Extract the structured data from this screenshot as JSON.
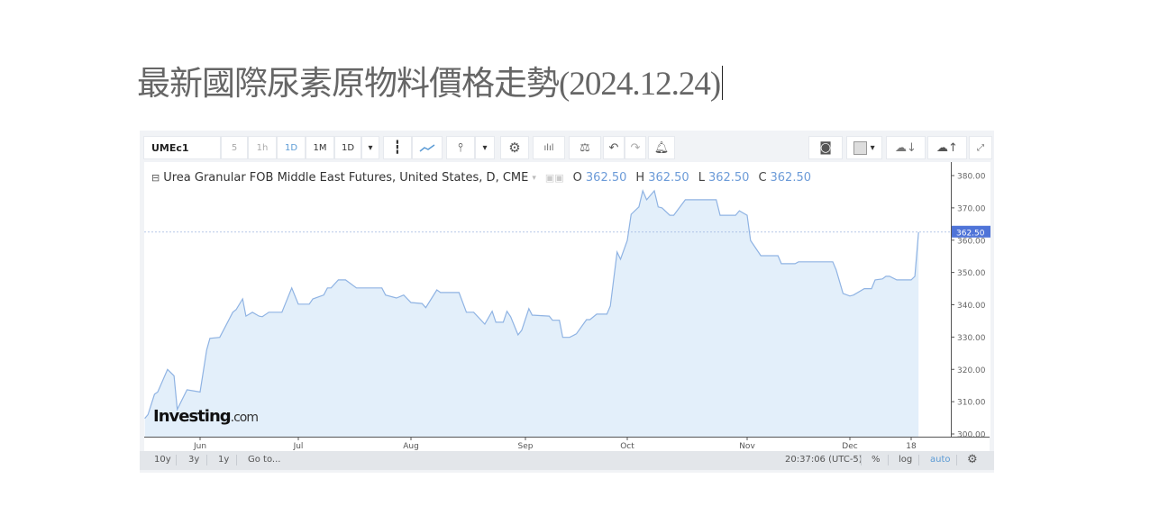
{
  "page": {
    "title": "最新國際尿素原物料價格走勢(2024.12.24)"
  },
  "toolbar": {
    "symbol": "UMEc1",
    "intervals": [
      "5",
      "1h",
      "1D",
      "1M",
      "1D"
    ],
    "icons": [
      "candlestick-icon",
      "line-chart-icon",
      "bar-type-icon",
      "settings-icon",
      "indicators-icon",
      "compare-icon",
      "undo-icon",
      "redo-icon",
      "alert-icon",
      "camera-icon",
      "color-swatch-icon",
      "cloud-download-icon",
      "cloud-upload-icon",
      "fullscreen-icon"
    ]
  },
  "legend": {
    "name": "Urea Granular FOB Middle East Futures, United States, D, CME",
    "o_label": "O",
    "o": "362.50",
    "h_label": "H",
    "h": "362.50",
    "l_label": "L",
    "l": "362.50",
    "c_label": "C",
    "c": "362.50"
  },
  "watermark": {
    "brand": "Investing",
    "suffix": ".com"
  },
  "bottom_bar": {
    "ranges": [
      "10y",
      "3y",
      "1y"
    ],
    "goto": "Go to...",
    "time": "20:37:06 (UTC-5)",
    "percent": "%",
    "log": "log",
    "auto": "auto"
  },
  "colors": {
    "line": "#8fb3e3",
    "fill": "#e3effa",
    "last_price_bg": "#4f74d8",
    "accent": "#5b9bd5"
  },
  "chart_data": {
    "type": "area",
    "ylim": [
      300,
      380
    ],
    "y_ticks": [
      "380.00",
      "370.00",
      "360.00",
      "350.00",
      "340.00",
      "330.00",
      "320.00",
      "310.00",
      "300.00"
    ],
    "x_ticks": [
      "Jun",
      "Jul",
      "Aug",
      "Sep",
      "Oct",
      "Nov",
      "Dec",
      "18"
    ],
    "last_price": "362.50",
    "grid": false,
    "points": [
      [
        "2024-05-15",
        304.8
      ],
      [
        "2024-05-16",
        306
      ],
      [
        "2024-05-18",
        312.3
      ],
      [
        "2024-05-19",
        313
      ],
      [
        "2024-05-22",
        320
      ],
      [
        "2024-05-24",
        318
      ],
      [
        "2024-05-25",
        307.6
      ],
      [
        "2024-05-28",
        313.7
      ],
      [
        "2024-06-01",
        313
      ],
      [
        "2024-06-03",
        326
      ],
      [
        "2024-06-04",
        329.6
      ],
      [
        "2024-06-07",
        329.9
      ],
      [
        "2024-06-11",
        337.7
      ],
      [
        "2024-06-12",
        338.5
      ],
      [
        "2024-06-14",
        341.8
      ],
      [
        "2024-06-15",
        336.5
      ],
      [
        "2024-06-17",
        337.7
      ],
      [
        "2024-06-19",
        336.5
      ],
      [
        "2024-06-20",
        336.3
      ],
      [
        "2024-06-22",
        337.7
      ],
      [
        "2024-06-26",
        337.7
      ],
      [
        "2024-06-29",
        345.2
      ],
      [
        "2024-07-01",
        340.2
      ],
      [
        "2024-07-04",
        340.2
      ],
      [
        "2024-07-05",
        341.8
      ],
      [
        "2024-07-08",
        343
      ],
      [
        "2024-07-09",
        345.2
      ],
      [
        "2024-07-10",
        345.2
      ],
      [
        "2024-07-12",
        347.7
      ],
      [
        "2024-07-14",
        347.7
      ],
      [
        "2024-07-17",
        345.2
      ],
      [
        "2024-07-24",
        345.2
      ],
      [
        "2024-07-25",
        343
      ],
      [
        "2024-07-28",
        342.1
      ],
      [
        "2024-07-30",
        343
      ],
      [
        "2024-08-01",
        340.7
      ],
      [
        "2024-08-04",
        340.4
      ],
      [
        "2024-08-05",
        339.1
      ],
      [
        "2024-08-08",
        344.6
      ],
      [
        "2024-08-09",
        343.8
      ],
      [
        "2024-08-14",
        343.8
      ],
      [
        "2024-08-16",
        337.7
      ],
      [
        "2024-08-18",
        337.7
      ],
      [
        "2024-08-21",
        334
      ],
      [
        "2024-08-23",
        338
      ],
      [
        "2024-08-24",
        334.6
      ],
      [
        "2024-08-26",
        334.6
      ],
      [
        "2024-08-27",
        338
      ],
      [
        "2024-08-28",
        336.3
      ],
      [
        "2024-08-30",
        330.7
      ],
      [
        "2024-08-31",
        332.1
      ],
      [
        "2024-09-02",
        338.8
      ],
      [
        "2024-09-03",
        336.8
      ],
      [
        "2024-09-08",
        336.5
      ],
      [
        "2024-09-09",
        335.2
      ],
      [
        "2024-09-11",
        335.2
      ],
      [
        "2024-09-12",
        329.9
      ],
      [
        "2024-09-14",
        329.9
      ],
      [
        "2024-09-16",
        331
      ],
      [
        "2024-09-19",
        335.4
      ],
      [
        "2024-09-20",
        335.4
      ],
      [
        "2024-09-22",
        337.1
      ],
      [
        "2024-09-25",
        337.1
      ],
      [
        "2024-09-26",
        339.6
      ],
      [
        "2024-09-28",
        356.3
      ],
      [
        "2024-09-29",
        354.1
      ],
      [
        "2024-10-01",
        359.9
      ],
      [
        "2024-10-02",
        368
      ],
      [
        "2024-10-04",
        370.3
      ],
      [
        "2024-10-05",
        375.3
      ],
      [
        "2024-10-06",
        372.5
      ],
      [
        "2024-10-08",
        375.3
      ],
      [
        "2024-10-09",
        370.3
      ],
      [
        "2024-10-10",
        370
      ],
      [
        "2024-10-12",
        367.7
      ],
      [
        "2024-10-13",
        367.7
      ],
      [
        "2024-10-16",
        372.5
      ],
      [
        "2024-10-24",
        372.5
      ],
      [
        "2024-10-25",
        367.7
      ],
      [
        "2024-10-29",
        367.7
      ],
      [
        "2024-10-30",
        369.1
      ],
      [
        "2024-11-01",
        367.7
      ],
      [
        "2024-11-02",
        359.9
      ],
      [
        "2024-11-05",
        355.2
      ],
      [
        "2024-11-10",
        355.2
      ],
      [
        "2024-11-11",
        352.7
      ],
      [
        "2024-11-15",
        352.7
      ],
      [
        "2024-11-16",
        353.3
      ],
      [
        "2024-11-26",
        353.3
      ],
      [
        "2024-11-27",
        350.8
      ],
      [
        "2024-11-29",
        343.5
      ],
      [
        "2024-12-01",
        342.7
      ],
      [
        "2024-12-02",
        343
      ],
      [
        "2024-12-05",
        345
      ],
      [
        "2024-12-07",
        345
      ],
      [
        "2024-12-08",
        347.7
      ],
      [
        "2024-12-10",
        348
      ],
      [
        "2024-12-11",
        348.8
      ],
      [
        "2024-12-12",
        348.8
      ],
      [
        "2024-12-14",
        347.7
      ],
      [
        "2024-12-18",
        347.7
      ],
      [
        "2024-12-19",
        348.8
      ],
      [
        "2024-12-20",
        362.5
      ]
    ]
  }
}
